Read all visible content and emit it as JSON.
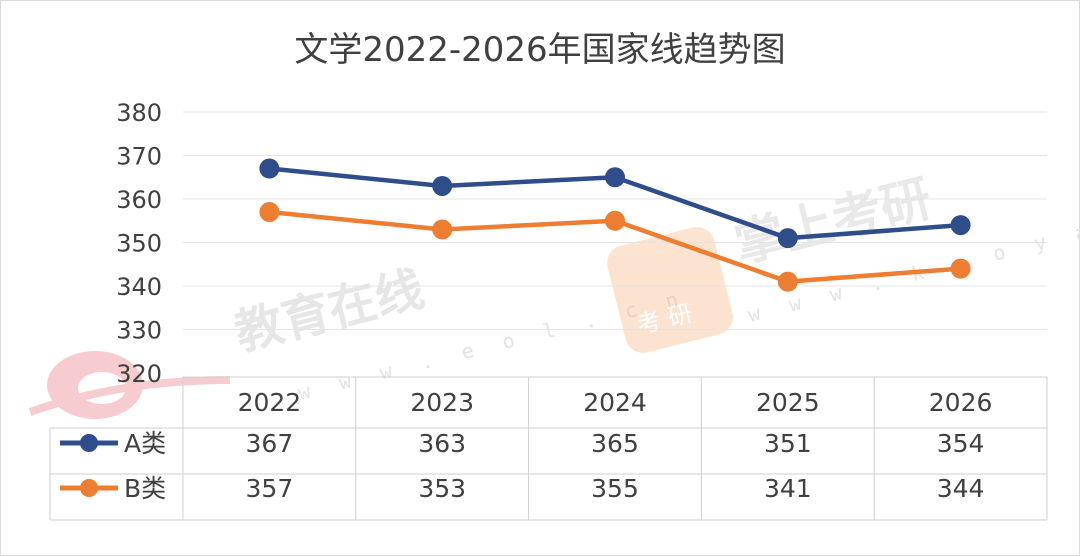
{
  "chart_data": {
    "type": "line",
    "title": "文学2022-2026年国家线趋势图",
    "categories": [
      "2022",
      "2023",
      "2024",
      "2025",
      "2026"
    ],
    "series": [
      {
        "name": "A类",
        "values": [
          367,
          363,
          365,
          351,
          354
        ],
        "color": "#2f4d8a"
      },
      {
        "name": "B类",
        "values": [
          357,
          353,
          355,
          341,
          344
        ],
        "color": "#ed7d31"
      }
    ],
    "ylim": [
      320,
      380
    ],
    "yticks": [
      320,
      330,
      340,
      350,
      360,
      370,
      380
    ],
    "grid": true,
    "legend": "data-table"
  },
  "watermarks": {
    "eol_text": "教育在线",
    "eol_url": "w w w . e o l . c n",
    "kaoyan_text": "掌上考研",
    "kaoyan_url": "w w w . k a o y a n . c n",
    "kaoyan_badge": "考 研",
    "eol_logo": "eol",
    "brand_red": "#e8485a",
    "brand_orange": "#f39b4a"
  }
}
